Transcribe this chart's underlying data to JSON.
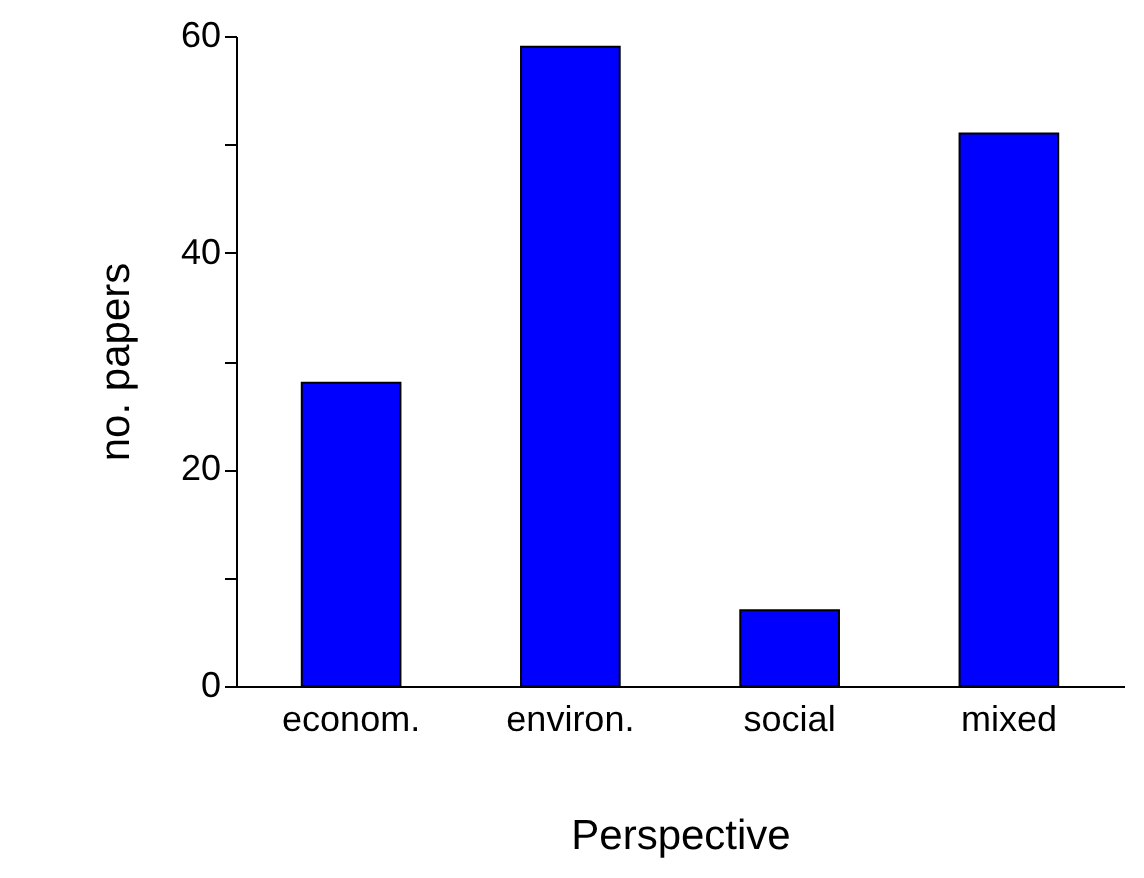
{
  "chart_data": {
    "type": "bar",
    "xlabel": "Perspective",
    "ylabel": "no. papers",
    "categories": [
      "econom.",
      "environ.",
      "social",
      "mixed"
    ],
    "values": [
      28,
      59,
      7,
      51
    ],
    "color": "#0000ff",
    "ylim": [
      0,
      60
    ],
    "yticks": [
      0,
      {
        "value": 10,
        "label": null
      },
      20,
      {
        "value": 30,
        "label": null
      },
      40,
      {
        "value": 50,
        "label": null
      },
      60
    ],
    "grid": false
  }
}
